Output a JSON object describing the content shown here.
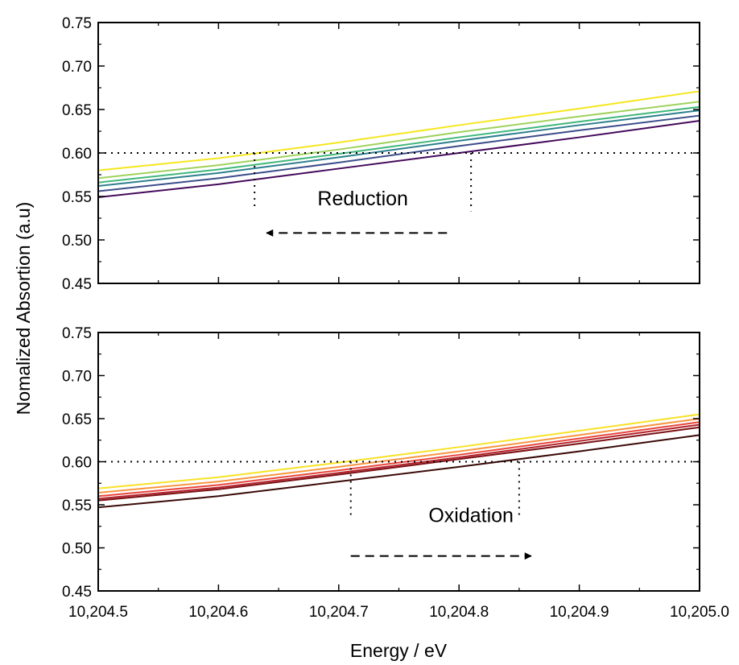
{
  "chart_data": [
    {
      "type": "line",
      "panel": "top",
      "ylabel": "Nomalized Absortion (a.u)",
      "xlabel": "Energy / eV",
      "xlim": [
        10204.5,
        10205.0
      ],
      "ylim": [
        0.45,
        0.75
      ],
      "xticks": [
        10204.5,
        10204.6,
        10204.7,
        10204.8,
        10204.9,
        10205.0
      ],
      "xtick_labels": [
        "10,204.5",
        "10,204.6",
        "10,204.7",
        "10,204.8",
        "10,204.9",
        "10,205.0"
      ],
      "yticks": [
        0.45,
        0.5,
        0.55,
        0.6,
        0.65,
        0.7,
        0.75
      ],
      "ytick_labels": [
        "0.45",
        "0.50",
        "0.55",
        "0.60",
        "0.65",
        "0.70",
        "0.75"
      ],
      "x": [
        10204.5,
        10204.6,
        10204.7,
        10204.8,
        10204.9,
        10205.0
      ],
      "series": [
        {
          "color": "#f5e61e",
          "values": [
            0.58,
            0.594,
            0.612,
            0.632,
            0.651,
            0.671
          ]
        },
        {
          "color": "#9fd25b",
          "values": [
            0.571,
            0.586,
            0.604,
            0.624,
            0.642,
            0.659
          ]
        },
        {
          "color": "#3fb77a",
          "values": [
            0.566,
            0.581,
            0.599,
            0.618,
            0.636,
            0.653
          ]
        },
        {
          "color": "#2d7f8e",
          "values": [
            0.562,
            0.577,
            0.595,
            0.614,
            0.632,
            0.649
          ]
        },
        {
          "color": "#3b4d8a",
          "values": [
            0.556,
            0.571,
            0.589,
            0.608,
            0.626,
            0.643
          ]
        },
        {
          "color": "#44095b",
          "values": [
            0.549,
            0.564,
            0.582,
            0.6,
            0.618,
            0.637
          ]
        }
      ],
      "reference_line": {
        "y": 0.6,
        "style": "dotted"
      },
      "marker_lines": [
        {
          "x": 10204.63,
          "y_from": 0.6,
          "y_to": 0.535
        },
        {
          "x": 10204.81,
          "y_from": 0.6,
          "y_to": 0.533
        }
      ],
      "annotation": {
        "text": "Reduction",
        "x": 10204.72,
        "y": 0.54
      },
      "arrow": {
        "x_from": 10204.79,
        "x_to": 10204.64,
        "y": 0.508,
        "style": "dashed"
      }
    },
    {
      "type": "line",
      "panel": "bottom",
      "xlim": [
        10204.5,
        10205.0
      ],
      "ylim": [
        0.45,
        0.75
      ],
      "xticks": [
        10204.5,
        10204.6,
        10204.7,
        10204.8,
        10204.9,
        10205.0
      ],
      "xtick_labels": [
        "10,204.5",
        "10,204.6",
        "10,204.7",
        "10,204.8",
        "10,204.9",
        "10,205.0"
      ],
      "yticks": [
        0.45,
        0.5,
        0.55,
        0.6,
        0.65,
        0.7,
        0.75
      ],
      "ytick_labels": [
        "0.45",
        "0.50",
        "0.55",
        "0.60",
        "0.65",
        "0.70",
        "0.75"
      ],
      "x": [
        10204.5,
        10204.6,
        10204.7,
        10204.8,
        10204.9,
        10205.0
      ],
      "series": [
        {
          "color": "#f7e225",
          "values": [
            0.569,
            0.582,
            0.599,
            0.617,
            0.636,
            0.655
          ]
        },
        {
          "color": "#f89540",
          "values": [
            0.564,
            0.577,
            0.594,
            0.612,
            0.631,
            0.65
          ]
        },
        {
          "color": "#e8453c",
          "values": [
            0.56,
            0.573,
            0.59,
            0.608,
            0.627,
            0.646
          ]
        },
        {
          "color": "#b3202a",
          "values": [
            0.557,
            0.57,
            0.587,
            0.605,
            0.624,
            0.643
          ]
        },
        {
          "color": "#7a1115",
          "values": [
            0.555,
            0.568,
            0.585,
            0.603,
            0.621,
            0.64
          ]
        },
        {
          "color": "#3a0a08",
          "values": [
            0.547,
            0.56,
            0.577,
            0.594,
            0.612,
            0.631
          ]
        }
      ],
      "reference_line": {
        "y": 0.6,
        "style": "dotted"
      },
      "marker_lines": [
        {
          "x": 10204.71,
          "y_from": 0.6,
          "y_to": 0.533
        },
        {
          "x": 10204.85,
          "y_from": 0.6,
          "y_to": 0.533
        }
      ],
      "annotation": {
        "text": "Oxidation",
        "x": 10204.81,
        "y": 0.53
      },
      "arrow": {
        "x_from": 10204.71,
        "x_to": 10204.86,
        "y": 0.4905,
        "style": "dashed"
      }
    }
  ]
}
